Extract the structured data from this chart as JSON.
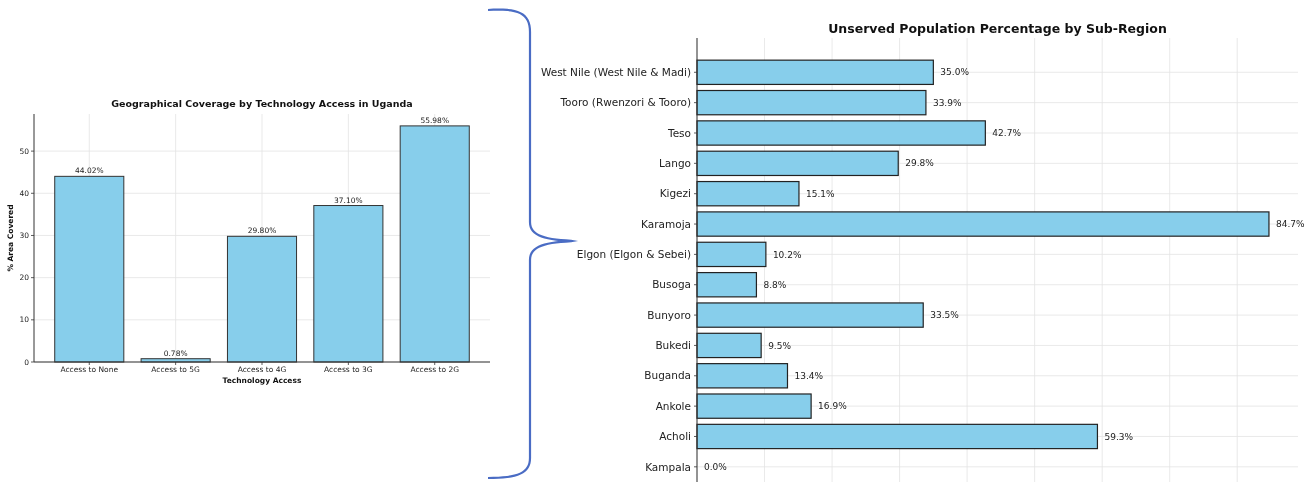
{
  "chart_data": [
    {
      "type": "bar",
      "title": "Geographical Coverage by Technology Access in Uganda",
      "xlabel": "Technology Access",
      "ylabel": "% Area Covered",
      "categories": [
        "Access to None",
        "Access to 5G",
        "Access to 4G",
        "Access to 3G",
        "Access to 2G"
      ],
      "values": [
        44.02,
        0.78,
        29.8,
        37.1,
        55.98
      ],
      "value_labels": [
        "44.02%",
        "0.78%",
        "29.80%",
        "37.10%",
        "55.98%"
      ],
      "color": "#87ceeb",
      "ylim": [
        0,
        58.8
      ],
      "yticks": [
        0,
        10,
        20,
        30,
        40,
        50
      ],
      "grid": true
    },
    {
      "type": "bar",
      "orientation": "horizontal",
      "title": "Unserved Population Percentage by Sub-Region",
      "categories": [
        "West Nile (West Nile & Madi)",
        "Tooro (Rwenzori & Tooro)",
        "Teso",
        "Lango",
        "Kigezi",
        "Karamoja",
        "Elgon (Elgon & Sebei)",
        "Busoga",
        "Bunyoro",
        "Bukedi",
        "Buganda",
        "Ankole",
        "Acholi",
        "Kampala"
      ],
      "values": [
        35.0,
        33.9,
        42.7,
        29.8,
        15.1,
        84.7,
        10.2,
        8.8,
        33.5,
        9.5,
        13.4,
        16.9,
        59.3,
        0.0
      ],
      "value_labels": [
        "35.0%",
        "33.9%",
        "42.7%",
        "29.8%",
        "15.1%",
        "84.7%",
        "10.2%",
        "8.8%",
        "33.5%",
        "9.5%",
        "13.4%",
        "16.9%",
        "59.3%",
        "0.0%"
      ],
      "color": "#87ceeb",
      "xlim": [
        0,
        89
      ],
      "xticks": [
        {
          "value": 0,
          "label": null
        },
        {
          "value": 10,
          "label": null
        },
        {
          "value": 20,
          "label": null
        },
        {
          "value": 30,
          "label": null
        },
        {
          "value": 40,
          "label": null
        },
        {
          "value": 50,
          "label": null
        },
        {
          "value": 60,
          "label": null
        },
        {
          "value": 70,
          "label": null
        },
        {
          "value": 80,
          "label": null
        }
      ],
      "grid": true,
      "tick_labels": "y"
    }
  ]
}
